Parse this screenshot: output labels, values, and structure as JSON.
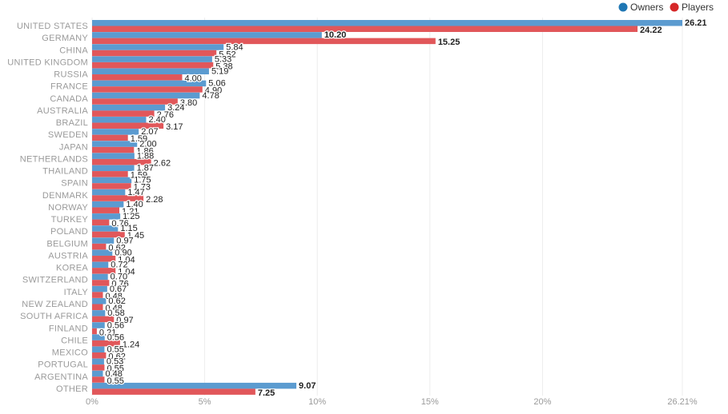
{
  "chart_data": {
    "type": "bar",
    "orientation": "horizontal",
    "categories": [
      "UNITED STATES",
      "GERMANY",
      "CHINA",
      "UNITED KINGDOM",
      "RUSSIA",
      "FRANCE",
      "CANADA",
      "AUSTRALIA",
      "BRAZIL",
      "SWEDEN",
      "JAPAN",
      "NETHERLANDS",
      "THAILAND",
      "SPAIN",
      "DENMARK",
      "NORWAY",
      "TURKEY",
      "POLAND",
      "BELGIUM",
      "AUSTRIA",
      "KOREA",
      "SWITZERLAND",
      "ITALY",
      "NEW ZEALAND",
      "SOUTH AFRICA",
      "FINLAND",
      "CHILE",
      "MEXICO",
      "PORTUGAL",
      "ARGENTINA",
      "OTHER"
    ],
    "series": [
      {
        "name": "Owners",
        "color": "#5b9bd0",
        "legend_color": "#1f77b4",
        "values": [
          26.21,
          10.2,
          5.84,
          5.33,
          5.19,
          5.06,
          4.78,
          3.24,
          2.4,
          2.07,
          2.0,
          1.88,
          1.87,
          1.75,
          1.47,
          1.4,
          1.25,
          1.15,
          0.97,
          0.9,
          0.72,
          0.7,
          0.67,
          0.62,
          0.58,
          0.56,
          0.56,
          0.55,
          0.53,
          0.48,
          9.07
        ]
      },
      {
        "name": "Players",
        "color": "#e1575a",
        "legend_color": "#d62728",
        "values": [
          24.22,
          15.25,
          5.52,
          5.38,
          4.0,
          4.9,
          3.8,
          2.76,
          3.17,
          1.59,
          1.86,
          2.62,
          1.59,
          1.73,
          2.28,
          1.21,
          0.76,
          1.45,
          0.62,
          1.04,
          1.04,
          0.76,
          0.48,
          0.48,
          0.97,
          0.21,
          1.24,
          0.62,
          0.55,
          0.55,
          7.25
        ]
      }
    ],
    "xlim": [
      0,
      26.21
    ],
    "x_ticks": [
      "0%",
      "5%",
      "10%",
      "15%",
      "20%",
      "26.21%"
    ],
    "x_tick_values": [
      0,
      5,
      10,
      15,
      20,
      26.21
    ],
    "bold_value_labels": [
      "UNITED STATES",
      "GERMANY",
      "OTHER"
    ],
    "legend_position": "top-right",
    "grid": true
  }
}
